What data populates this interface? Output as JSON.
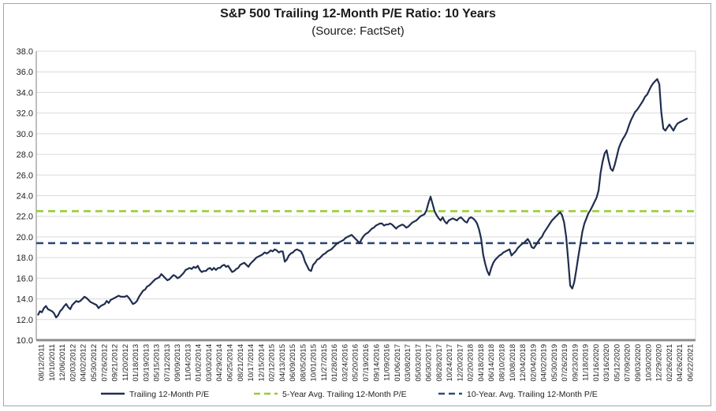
{
  "chart_data": {
    "type": "line",
    "title": "S&P 500 Trailing 12-Month P/E Ratio: 10 Years",
    "subtitle": "(Source: FactSet)",
    "xlabel": "",
    "ylabel": "",
    "ylim": [
      10.0,
      38.0
    ],
    "y_ticks": [
      "10.0",
      "12.0",
      "14.0",
      "16.0",
      "18.0",
      "20.0",
      "22.0",
      "24.0",
      "26.0",
      "28.0",
      "30.0",
      "32.0",
      "34.0",
      "36.0",
      "38.0"
    ],
    "x_ticks": [
      "08/12/2011",
      "10/10/2011",
      "12/06/2011",
      "02/03/2012",
      "04/02/2012",
      "05/30/2012",
      "07/26/2012",
      "09/21/2012",
      "11/20/2012",
      "01/18/2013",
      "03/19/2013",
      "05/15/2013",
      "07/12/2013",
      "09/09/2013",
      "11/04/2013",
      "01/02/2014",
      "03/03/2014",
      "04/29/2014",
      "06/25/2014",
      "08/21/2014",
      "10/17/2014",
      "12/15/2014",
      "02/12/2015",
      "04/13/2015",
      "06/09/2015",
      "08/05/2015",
      "10/01/2015",
      "11/27/2015",
      "01/28/2016",
      "03/24/2016",
      "05/20/2016",
      "07/19/2016",
      "09/14/2016",
      "11/09/2016",
      "01/06/2017",
      "03/08/2017",
      "05/03/2017",
      "06/30/2017",
      "08/28/2017",
      "10/24/2017",
      "12/20/2017",
      "02/20/2018",
      "04/18/2018",
      "06/14/2018",
      "08/10/2018",
      "10/08/2018",
      "12/04/2018",
      "02/04/2019",
      "04/02/2019",
      "05/30/2019",
      "07/26/2019",
      "09/23/2019",
      "11/18/2019",
      "01/16/2020",
      "03/16/2020",
      "05/12/2020",
      "07/09/2020",
      "09/03/2020",
      "10/30/2020",
      "12/29/2020",
      "02/26/2021",
      "04/26/2021",
      "06/22/2021"
    ],
    "series": [
      {
        "name": "Trailing 12-Month P/E",
        "color": "#1f2d4f",
        "style": "solid",
        "values": [
          12.4,
          12.8,
          12.7,
          13.1,
          13.3,
          13.0,
          12.9,
          12.8,
          12.6,
          12.2,
          12.4,
          12.8,
          13.0,
          13.3,
          13.5,
          13.2,
          13.0,
          13.4,
          13.6,
          13.8,
          13.7,
          13.8,
          14.0,
          14.2,
          14.1,
          13.9,
          13.7,
          13.6,
          13.5,
          13.4,
          13.1,
          13.3,
          13.4,
          13.5,
          13.8,
          13.6,
          13.9,
          14.0,
          14.1,
          14.2,
          14.3,
          14.2,
          14.2,
          14.2,
          14.3,
          14.1,
          13.8,
          13.5,
          13.6,
          13.8,
          14.2,
          14.5,
          14.8,
          14.9,
          15.2,
          15.3,
          15.5,
          15.7,
          15.9,
          16.0,
          16.1,
          16.4,
          16.2,
          16.0,
          15.8,
          15.9,
          16.1,
          16.3,
          16.2,
          16.0,
          16.1,
          16.3,
          16.5,
          16.8,
          16.9,
          17.0,
          16.9,
          17.1,
          17.0,
          17.2,
          16.8,
          16.6,
          16.7,
          16.7,
          16.9,
          17.0,
          16.8,
          17.0,
          16.8,
          17.0,
          17.0,
          17.2,
          17.3,
          17.1,
          17.2,
          16.9,
          16.6,
          16.7,
          16.9,
          17.0,
          17.3,
          17.4,
          17.5,
          17.3,
          17.1,
          17.4,
          17.6,
          17.8,
          18.0,
          18.1,
          18.2,
          18.3,
          18.5,
          18.4,
          18.5,
          18.7,
          18.6,
          18.8,
          18.7,
          18.5,
          18.6,
          18.6,
          17.6,
          17.8,
          18.2,
          18.4,
          18.5,
          18.7,
          18.8,
          18.7,
          18.6,
          18.2,
          17.6,
          17.2,
          16.8,
          16.7,
          17.3,
          17.5,
          17.8,
          17.9,
          18.1,
          18.3,
          18.4,
          18.6,
          18.7,
          18.8,
          19.0,
          19.2,
          19.4,
          19.5,
          19.6,
          19.7,
          19.9,
          20.0,
          20.1,
          20.2,
          20.0,
          19.8,
          19.6,
          19.4,
          19.8,
          20.1,
          20.3,
          20.4,
          20.6,
          20.8,
          20.9,
          21.1,
          21.2,
          21.3,
          21.3,
          21.1,
          21.2,
          21.2,
          21.3,
          21.2,
          21.0,
          20.8,
          21.0,
          21.1,
          21.2,
          21.1,
          20.9,
          21.0,
          21.2,
          21.4,
          21.5,
          21.6,
          21.8,
          22.0,
          22.1,
          22.2,
          22.6,
          23.3,
          23.9,
          23.2,
          22.5,
          22.1,
          21.8,
          21.6,
          21.9,
          21.5,
          21.3,
          21.6,
          21.7,
          21.8,
          21.7,
          21.6,
          21.8,
          21.9,
          21.7,
          21.5,
          21.4,
          21.8,
          21.9,
          21.8,
          21.6,
          21.3,
          20.7,
          19.8,
          18.3,
          17.4,
          16.7,
          16.3,
          17.0,
          17.5,
          17.8,
          18.0,
          18.2,
          18.3,
          18.5,
          18.6,
          18.7,
          18.8,
          18.2,
          18.4,
          18.6,
          18.9,
          19.1,
          19.3,
          19.4,
          19.6,
          19.8,
          19.5,
          19.0,
          18.9,
          19.2,
          19.5,
          19.8,
          20.0,
          20.4,
          20.7,
          21.0,
          21.3,
          21.6,
          21.8,
          22.0,
          22.2,
          22.4,
          22.1,
          21.4,
          20.0,
          17.8,
          15.3,
          15.0,
          15.6,
          16.8,
          18.1,
          19.3,
          20.5,
          21.3,
          21.8,
          22.3,
          22.6,
          23.0,
          23.4,
          23.8,
          24.5,
          26.2,
          27.3,
          28.1,
          28.4,
          27.4,
          26.6,
          26.4,
          27.0,
          27.8,
          28.6,
          29.1,
          29.5,
          29.8,
          30.2,
          30.8,
          31.3,
          31.7,
          32.1,
          32.3,
          32.6,
          32.9,
          33.2,
          33.6,
          33.8,
          34.2,
          34.6,
          34.9,
          35.1,
          35.3,
          34.8,
          32.1,
          30.5,
          30.3,
          30.6,
          30.9,
          30.6,
          30.3,
          30.7,
          31.0,
          31.1,
          31.2,
          31.3,
          31.4,
          31.5
        ]
      },
      {
        "name": "5-Year Avg. Trailing 12-Month P/E",
        "color": "#9acd32",
        "style": "dashed",
        "value": 22.5
      },
      {
        "name": "10-Year. Avg. Trailing 12-Month P/E",
        "color": "#2e4a78",
        "style": "dashed",
        "value": 19.4
      }
    ],
    "legend_position": "bottom",
    "grid": true
  }
}
